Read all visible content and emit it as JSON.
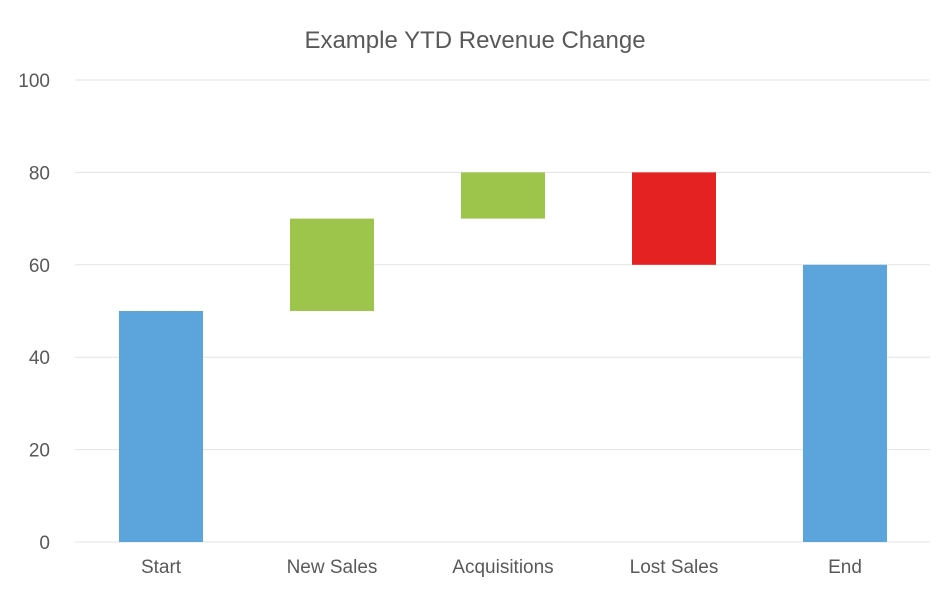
{
  "chart_data": {
    "type": "bar",
    "subtype": "waterfall",
    "title": "Example YTD Revenue Change",
    "xlabel": "",
    "ylabel": "",
    "ylim": [
      0,
      100
    ],
    "yticks": [
      0,
      20,
      40,
      60,
      80,
      100
    ],
    "grid": true,
    "legend": "none",
    "categories": [
      "Start",
      "New Sales",
      "Acquisitions",
      "Lost Sales",
      "End"
    ],
    "bars": [
      {
        "category": "Start",
        "kind": "total",
        "start": 0,
        "end": 50,
        "color": "#5BA5DC"
      },
      {
        "category": "New Sales",
        "kind": "increase",
        "start": 50,
        "end": 70,
        "color": "#9DC54B"
      },
      {
        "category": "Acquisitions",
        "kind": "increase",
        "start": 70,
        "end": 80,
        "color": "#9DC54B"
      },
      {
        "category": "Lost Sales",
        "kind": "decrease",
        "start": 80,
        "end": 60,
        "color": "#E52222"
      },
      {
        "category": "End",
        "kind": "total",
        "start": 0,
        "end": 60,
        "color": "#5BA5DC"
      }
    ],
    "colors": {
      "total": "#5BA5DC",
      "increase": "#9DC54B",
      "decrease": "#E52222",
      "text": "#595959",
      "grid": "#E3E3E3"
    }
  }
}
